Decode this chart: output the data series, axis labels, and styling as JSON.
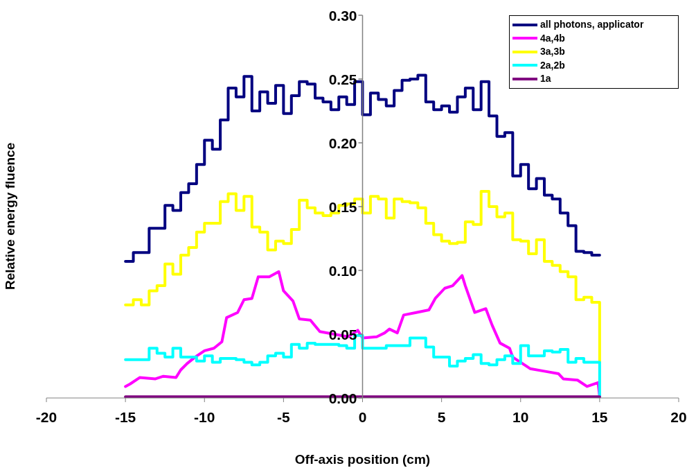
{
  "chart_data": {
    "type": "step",
    "xlabel": "Off-axis position (cm)",
    "ylabel": "Relative energy fluence",
    "xlim": [
      -20,
      20
    ],
    "xticks": [
      -20,
      -15,
      -10,
      -5,
      0,
      5,
      10,
      15,
      20
    ],
    "ylim": [
      0,
      0.3
    ],
    "yticks": [
      {
        "value": 0,
        "label": "0.00"
      },
      {
        "value": 0.05,
        "label": "0.05"
      },
      {
        "value": 0.1,
        "label": "0.10"
      },
      {
        "value": 0.15,
        "label": "0.15"
      },
      {
        "value": 0.2,
        "label": "0.20"
      },
      {
        "value": 0.25,
        "label": "0.25"
      },
      {
        "value": 0.3,
        "label": "0.30"
      }
    ],
    "grid": false,
    "legend": "top right",
    "marker": "none",
    "line_style": "solid",
    "x": [
      -15,
      -14.5,
      -14,
      -13.5,
      -13,
      -12.5,
      -12,
      -11.5,
      -11,
      -10.5,
      -10,
      -9.5,
      -9,
      -8.5,
      -8,
      -7.5,
      -7,
      -6.5,
      -6,
      -5.5,
      -5,
      -4.5,
      -4,
      -3.5,
      -3,
      -2.5,
      -2,
      -1.5,
      -1,
      -0.5,
      0,
      0.5,
      1,
      1.5,
      2,
      2.5,
      3,
      3.5,
      4,
      4.5,
      5,
      5.5,
      6,
      6.5,
      7,
      7.5,
      8,
      8.5,
      9,
      9.5,
      10,
      10.5,
      11,
      11.5,
      12,
      12.5,
      13,
      13.5,
      14,
      14.5,
      15
    ],
    "series": [
      {
        "name": "all photons, applicator",
        "color": "#000080",
        "values": [
          0.107,
          0.114,
          0.114,
          0.133,
          0.133,
          0.151,
          0.147,
          0.161,
          0.168,
          0.183,
          0.202,
          0.195,
          0.218,
          0.243,
          0.236,
          0.252,
          0.225,
          0.24,
          0.231,
          0.245,
          0.223,
          0.237,
          0.248,
          0.246,
          0.235,
          0.232,
          0.226,
          0.236,
          0.23,
          0.248,
          0.222,
          0.239,
          0.234,
          0.229,
          0.241,
          0.249,
          0.25,
          0.253,
          0.232,
          0.226,
          0.229,
          0.224,
          0.236,
          0.243,
          0.226,
          0.248,
          0.221,
          0.205,
          0.208,
          0.174,
          0.183,
          0.164,
          0.172,
          0.159,
          0.156,
          0.145,
          0.135,
          0.115,
          0.114,
          0.112,
          0.112
        ]
      },
      {
        "name": "4a,4b",
        "color": "#ff00ff",
        "type": "line",
        "x": [
          -15,
          -14.7,
          -14.1,
          -13.1,
          -12.6,
          -11.8,
          -11.5,
          -11.1,
          -10.6,
          -10,
          -9.4,
          -8.9,
          -8.6,
          -7.9,
          -7.5,
          -7,
          -6.6,
          -5.9,
          -5.3,
          -5,
          -4.4,
          -4,
          -3.3,
          -2.7,
          -0.9,
          -0.3,
          0,
          0.9,
          1.4,
          1.7,
          2.2,
          2.6,
          3.4,
          4.2,
          4.6,
          5.2,
          5.7,
          6.3,
          6.5,
          7.1,
          7.8,
          8.2,
          8.7,
          9.3,
          9.5,
          10.6,
          11.5,
          12.4,
          12.7,
          13.6,
          14.2,
          14.9,
          15
        ],
        "values": [
          0.009,
          0.011,
          0.016,
          0.015,
          0.017,
          0.016,
          0.022,
          0.027,
          0.032,
          0.037,
          0.039,
          0.044,
          0.063,
          0.067,
          0.077,
          0.078,
          0.095,
          0.095,
          0.099,
          0.084,
          0.076,
          0.062,
          0.061,
          0.052,
          0.048,
          0.053,
          0.047,
          0.048,
          0.051,
          0.054,
          0.051,
          0.065,
          0.067,
          0.069,
          0.078,
          0.086,
          0.088,
          0.096,
          0.088,
          0.067,
          0.07,
          0.057,
          0.043,
          0.039,
          0.032,
          0.023,
          0.021,
          0.019,
          0.015,
          0.014,
          0.009,
          0.012,
          0.001
        ]
      },
      {
        "name": "3a,3b",
        "color": "#ffff00",
        "values": [
          0.073,
          0.077,
          0.073,
          0.084,
          0.088,
          0.105,
          0.097,
          0.112,
          0.118,
          0.13,
          0.137,
          0.137,
          0.154,
          0.16,
          0.147,
          0.158,
          0.134,
          0.13,
          0.116,
          0.123,
          0.121,
          0.132,
          0.155,
          0.149,
          0.145,
          0.143,
          0.145,
          0.151,
          0.152,
          0.156,
          0.145,
          0.158,
          0.156,
          0.141,
          0.156,
          0.154,
          0.153,
          0.149,
          0.137,
          0.128,
          0.123,
          0.121,
          0.122,
          0.138,
          0.136,
          0.162,
          0.15,
          0.142,
          0.145,
          0.124,
          0.123,
          0.113,
          0.124,
          0.107,
          0.104,
          0.099,
          0.095,
          0.077,
          0.079,
          0.075,
          0.028
        ]
      },
      {
        "name": "2a,2b",
        "color": "#00ffff",
        "values": [
          0.03,
          0.03,
          0.03,
          0.039,
          0.035,
          0.032,
          0.039,
          0.032,
          0.032,
          0.029,
          0.033,
          0.028,
          0.031,
          0.031,
          0.03,
          0.028,
          0.026,
          0.028,
          0.033,
          0.035,
          0.032,
          0.042,
          0.039,
          0.043,
          0.042,
          0.042,
          0.042,
          0.041,
          0.039,
          0.049,
          0.039,
          0.039,
          0.039,
          0.041,
          0.041,
          0.041,
          0.047,
          0.047,
          0.04,
          0.032,
          0.032,
          0.025,
          0.029,
          0.031,
          0.034,
          0.027,
          0.026,
          0.03,
          0.033,
          0.027,
          0.041,
          0.033,
          0.033,
          0.037,
          0.036,
          0.038,
          0.028,
          0.031,
          0.028,
          0.028,
          0.001
        ]
      },
      {
        "name": "1a",
        "color": "#800080",
        "type": "line",
        "x": [
          -15,
          -10,
          -5,
          0,
          5,
          10,
          15
        ],
        "values": [
          0.001,
          0.001,
          0.001,
          0.001,
          0.001,
          0.001,
          0.001
        ]
      }
    ]
  }
}
